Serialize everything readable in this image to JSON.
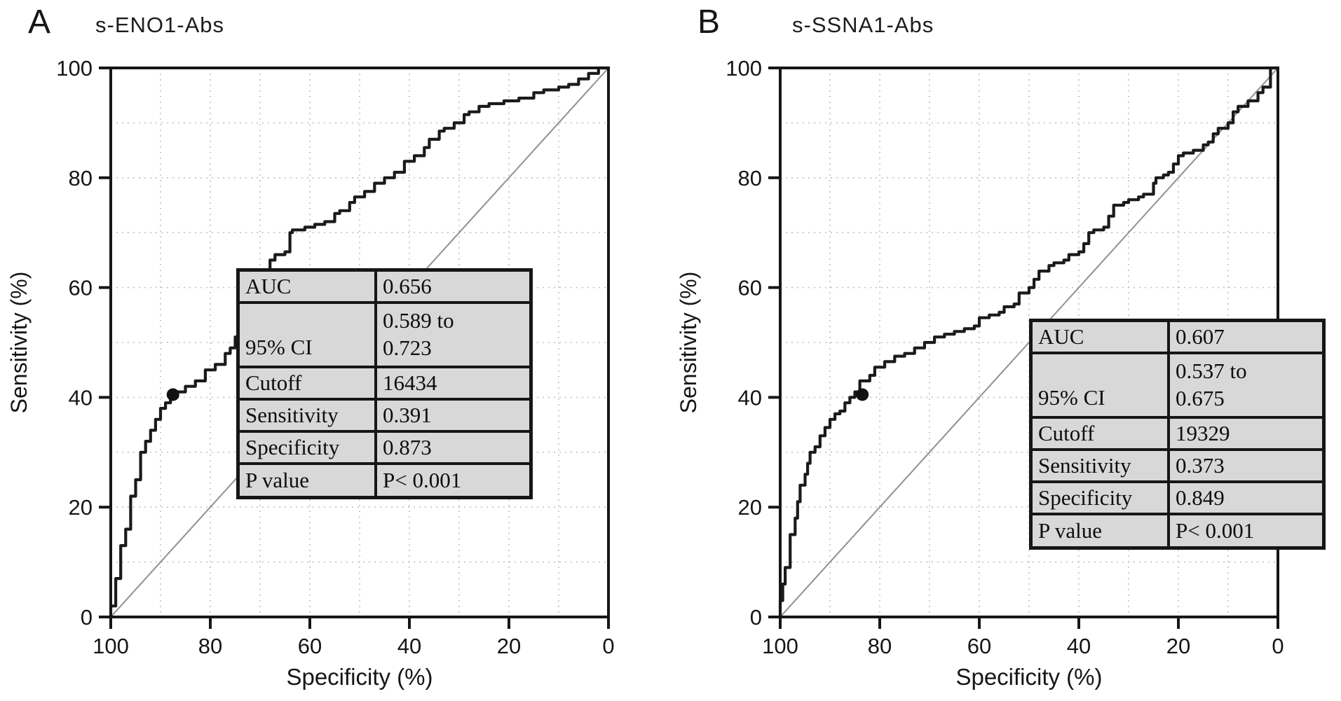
{
  "figure": {
    "panels": [
      {
        "label": "A",
        "title": "s-ENO1-Abs",
        "x_axis": {
          "label": "Specificity (%)",
          "ticks": [
            "100",
            "80",
            "60",
            "40",
            "20",
            "0"
          ]
        },
        "y_axis": {
          "label": "Sensitivity (%)",
          "ticks": [
            "0",
            "20",
            "40",
            "60",
            "80",
            "100"
          ]
        },
        "stats": {
          "rows": [
            {
              "label": "AUC",
              "value": "0.656"
            },
            {
              "label": "95% CI",
              "value": "0.589 to",
              "value2": "0.723"
            },
            {
              "label": "Cutoff",
              "value": "16434"
            },
            {
              "label": "Sensitivity",
              "value": "0.391"
            },
            {
              "label": "Specificity",
              "value": "0.873"
            },
            {
              "label": "P value",
              "value": "P< 0.001"
            }
          ]
        }
      },
      {
        "label": "B",
        "title": "s-SSNA1-Abs",
        "x_axis": {
          "label": "Specificity (%)",
          "ticks": [
            "100",
            "80",
            "60",
            "40",
            "20",
            "0"
          ]
        },
        "y_axis": {
          "label": "Sensitivity (%)",
          "ticks": [
            "0",
            "20",
            "40",
            "60",
            "80",
            "100"
          ]
        },
        "stats": {
          "rows": [
            {
              "label": "AUC",
              "value": "0.607"
            },
            {
              "label": "95% CI",
              "value": "0.537 to",
              "value2": "0.675"
            },
            {
              "label": "Cutoff",
              "value": "19329"
            },
            {
              "label": "Sensitivity",
              "value": "0.373"
            },
            {
              "label": "Specificity",
              "value": "0.849"
            },
            {
              "label": "P value",
              "value": "P< 0.001"
            }
          ]
        }
      }
    ]
  },
  "chart_data": [
    {
      "type": "line",
      "subtype": "roc-curve",
      "title": "s-ENO1-Abs",
      "xlabel": "Specificity (%)",
      "ylabel": "Sensitivity (%)",
      "x_ticks": [
        100,
        80,
        60,
        40,
        20,
        0
      ],
      "y_ticks": [
        0,
        20,
        40,
        60,
        80,
        100
      ],
      "x_axis_reversed": true,
      "xlim": [
        100,
        0
      ],
      "ylim": [
        0,
        100
      ],
      "grid": "dotted light-gray every 10%",
      "reference_diagonal": true,
      "curve_color": "#1a1a1a",
      "diagonal_color": "#909090",
      "cutoff_point": {
        "one_minus_specificity": 0.125,
        "sensitivity": 0.405
      },
      "roc_points_1mspec_sens": [
        [
          0,
          0
        ],
        [
          0.01,
          0.02
        ],
        [
          0.01,
          0.05
        ],
        [
          0.02,
          0.07
        ],
        [
          0.02,
          0.1
        ],
        [
          0.03,
          0.13
        ],
        [
          0.04,
          0.16
        ],
        [
          0.04,
          0.19
        ],
        [
          0.05,
          0.22
        ],
        [
          0.06,
          0.25
        ],
        [
          0.06,
          0.28
        ],
        [
          0.07,
          0.3
        ],
        [
          0.08,
          0.32
        ],
        [
          0.09,
          0.34
        ],
        [
          0.1,
          0.36
        ],
        [
          0.11,
          0.38
        ],
        [
          0.12,
          0.39
        ],
        [
          0.13,
          0.4
        ],
        [
          0.15,
          0.41
        ],
        [
          0.17,
          0.42
        ],
        [
          0.19,
          0.43
        ],
        [
          0.21,
          0.45
        ],
        [
          0.23,
          0.46
        ],
        [
          0.24,
          0.48
        ],
        [
          0.25,
          0.49
        ],
        [
          0.26,
          0.51
        ],
        [
          0.27,
          0.53
        ],
        [
          0.29,
          0.535
        ],
        [
          0.3,
          0.57
        ],
        [
          0.305,
          0.61
        ],
        [
          0.32,
          0.63
        ],
        [
          0.33,
          0.65
        ],
        [
          0.35,
          0.66
        ],
        [
          0.36,
          0.665
        ],
        [
          0.365,
          0.7
        ],
        [
          0.39,
          0.705
        ],
        [
          0.41,
          0.71
        ],
        [
          0.43,
          0.715
        ],
        [
          0.45,
          0.72
        ],
        [
          0.46,
          0.735
        ],
        [
          0.48,
          0.74
        ],
        [
          0.49,
          0.755
        ],
        [
          0.51,
          0.765
        ],
        [
          0.53,
          0.775
        ],
        [
          0.55,
          0.79
        ],
        [
          0.57,
          0.8
        ],
        [
          0.59,
          0.81
        ],
        [
          0.61,
          0.83
        ],
        [
          0.63,
          0.84
        ],
        [
          0.64,
          0.855
        ],
        [
          0.66,
          0.87
        ],
        [
          0.67,
          0.885
        ],
        [
          0.69,
          0.89
        ],
        [
          0.71,
          0.9
        ],
        [
          0.72,
          0.915
        ],
        [
          0.74,
          0.92
        ],
        [
          0.76,
          0.93
        ],
        [
          0.79,
          0.935
        ],
        [
          0.82,
          0.94
        ],
        [
          0.85,
          0.945
        ],
        [
          0.87,
          0.955
        ],
        [
          0.9,
          0.96
        ],
        [
          0.92,
          0.965
        ],
        [
          0.94,
          0.97
        ],
        [
          0.96,
          0.98
        ],
        [
          0.98,
          0.99
        ],
        [
          1,
          1
        ]
      ],
      "stats": {
        "AUC": "0.656",
        "95% CI": "0.589 to 0.723",
        "Cutoff": "16434",
        "Sensitivity": "0.391",
        "Specificity": "0.873",
        "P value": "P< 0.001"
      }
    },
    {
      "type": "line",
      "subtype": "roc-curve",
      "title": "s-SSNA1-Abs",
      "xlabel": "Specificity (%)",
      "ylabel": "Sensitivity (%)",
      "x_ticks": [
        100,
        80,
        60,
        40,
        20,
        0
      ],
      "y_ticks": [
        0,
        20,
        40,
        60,
        80,
        100
      ],
      "x_axis_reversed": true,
      "xlim": [
        100,
        0
      ],
      "ylim": [
        0,
        100
      ],
      "grid": "dotted light-gray every 10%",
      "reference_diagonal": true,
      "curve_color": "#1a1a1a",
      "diagonal_color": "#909090",
      "cutoff_point": {
        "one_minus_specificity": 0.165,
        "sensitivity": 0.405
      },
      "roc_points_1mspec_sens": [
        [
          0,
          0
        ],
        [
          0.005,
          0.03
        ],
        [
          0.01,
          0.06
        ],
        [
          0.02,
          0.09
        ],
        [
          0.02,
          0.12
        ],
        [
          0.03,
          0.15
        ],
        [
          0.035,
          0.18
        ],
        [
          0.04,
          0.21
        ],
        [
          0.05,
          0.24
        ],
        [
          0.055,
          0.26
        ],
        [
          0.06,
          0.28
        ],
        [
          0.07,
          0.3
        ],
        [
          0.08,
          0.31
        ],
        [
          0.09,
          0.33
        ],
        [
          0.1,
          0.345
        ],
        [
          0.11,
          0.36
        ],
        [
          0.12,
          0.37
        ],
        [
          0.13,
          0.375
        ],
        [
          0.14,
          0.39
        ],
        [
          0.15,
          0.4
        ],
        [
          0.16,
          0.41
        ],
        [
          0.18,
          0.43
        ],
        [
          0.19,
          0.44
        ],
        [
          0.21,
          0.455
        ],
        [
          0.23,
          0.465
        ],
        [
          0.25,
          0.475
        ],
        [
          0.27,
          0.48
        ],
        [
          0.29,
          0.49
        ],
        [
          0.31,
          0.5
        ],
        [
          0.33,
          0.51
        ],
        [
          0.35,
          0.515
        ],
        [
          0.37,
          0.52
        ],
        [
          0.39,
          0.525
        ],
        [
          0.4,
          0.53
        ],
        [
          0.42,
          0.545
        ],
        [
          0.44,
          0.55
        ],
        [
          0.45,
          0.555
        ],
        [
          0.47,
          0.565
        ],
        [
          0.48,
          0.57
        ],
        [
          0.5,
          0.59
        ],
        [
          0.51,
          0.6
        ],
        [
          0.52,
          0.615
        ],
        [
          0.54,
          0.63
        ],
        [
          0.55,
          0.64
        ],
        [
          0.57,
          0.645
        ],
        [
          0.58,
          0.65
        ],
        [
          0.6,
          0.66
        ],
        [
          0.61,
          0.665
        ],
        [
          0.62,
          0.68
        ],
        [
          0.63,
          0.7
        ],
        [
          0.65,
          0.705
        ],
        [
          0.66,
          0.71
        ],
        [
          0.67,
          0.73
        ],
        [
          0.69,
          0.75
        ],
        [
          0.7,
          0.755
        ],
        [
          0.72,
          0.76
        ],
        [
          0.73,
          0.765
        ],
        [
          0.75,
          0.77
        ],
        [
          0.755,
          0.79
        ],
        [
          0.77,
          0.8
        ],
        [
          0.78,
          0.805
        ],
        [
          0.79,
          0.81
        ],
        [
          0.8,
          0.825
        ],
        [
          0.81,
          0.84
        ],
        [
          0.83,
          0.845
        ],
        [
          0.85,
          0.85
        ],
        [
          0.86,
          0.86
        ],
        [
          0.87,
          0.865
        ],
        [
          0.88,
          0.88
        ],
        [
          0.9,
          0.89
        ],
        [
          0.91,
          0.9
        ],
        [
          0.92,
          0.92
        ],
        [
          0.94,
          0.93
        ],
        [
          0.96,
          0.94
        ],
        [
          0.97,
          0.955
        ],
        [
          0.985,
          0.965
        ],
        [
          1,
          1
        ]
      ],
      "stats": {
        "AUC": "0.607",
        "95% CI": "0.537 to 0.675",
        "Cutoff": "19329",
        "Sensitivity": "0.373",
        "Specificity": "0.849",
        "P value": "P< 0.001"
      }
    }
  ]
}
